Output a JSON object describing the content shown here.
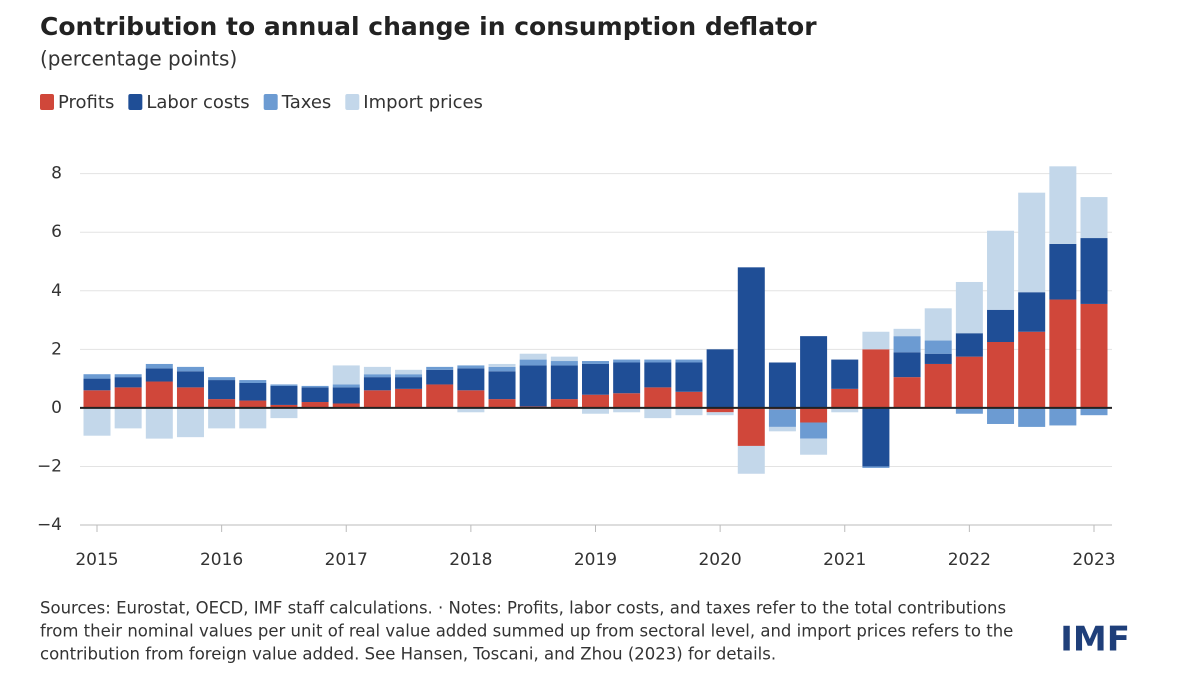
{
  "chart_data": {
    "type": "bar",
    "stacked": true,
    "title": "Contribution to annual change in consumption deflator",
    "subtitle": "(percentage points)",
    "categories": [
      "2015",
      null,
      null,
      null,
      "2016",
      null,
      null,
      null,
      "2017",
      null,
      null,
      null,
      "2018",
      null,
      null,
      null,
      "2019",
      null,
      null,
      null,
      "2020",
      null,
      null,
      null,
      "2021",
      null,
      null,
      null,
      "2022",
      null,
      null,
      null,
      "2023"
    ],
    "series": [
      {
        "name": "Profits",
        "color": "#d0473a",
        "values": [
          0.6,
          0.7,
          0.9,
          0.7,
          0.3,
          0.25,
          0.1,
          0.2,
          0.15,
          0.6,
          0.65,
          0.8,
          0.6,
          0.3,
          0.05,
          0.3,
          0.45,
          0.5,
          0.7,
          0.55,
          -0.15,
          -1.3,
          -0.05,
          -0.5,
          0.65,
          2.0,
          1.05,
          1.5,
          1.75,
          2.25,
          2.6,
          3.7,
          3.55
        ]
      },
      {
        "name": "Labor costs",
        "color": "#1f4e96",
        "values": [
          0.4,
          0.35,
          0.45,
          0.55,
          0.65,
          0.6,
          0.65,
          0.5,
          0.55,
          0.45,
          0.4,
          0.5,
          0.75,
          0.95,
          1.4,
          1.15,
          1.05,
          1.05,
          0.85,
          1.0,
          2.0,
          4.8,
          1.55,
          2.45,
          1.0,
          -2.0,
          0.85,
          0.35,
          0.8,
          1.1,
          1.35,
          1.9,
          2.25
        ]
      },
      {
        "name": "Taxes",
        "color": "#6c9bd2",
        "values": [
          0.15,
          0.1,
          0.15,
          0.15,
          0.1,
          0.1,
          0.05,
          0.05,
          0.1,
          0.1,
          0.1,
          0.1,
          0.1,
          0.15,
          0.2,
          0.15,
          0.1,
          0.1,
          0.1,
          0.1,
          0,
          0,
          -0.6,
          -0.55,
          0,
          -0.05,
          0.55,
          0.45,
          -0.2,
          -0.55,
          -0.65,
          -0.6,
          -0.25
        ]
      },
      {
        "name": "Import prices",
        "color": "#c3d7ea",
        "values": [
          -0.95,
          -0.7,
          -1.05,
          -1.0,
          -0.7,
          -0.7,
          -0.35,
          0,
          0.65,
          0.25,
          0.15,
          0,
          -0.15,
          0.1,
          0.2,
          0.15,
          -0.2,
          -0.15,
          -0.35,
          -0.25,
          -0.1,
          -0.95,
          -0.15,
          -0.55,
          -0.15,
          0.6,
          0.25,
          1.1,
          1.75,
          2.7,
          3.4,
          2.65,
          1.4
        ]
      }
    ],
    "ylim": [
      -4,
      8.5
    ],
    "yticks": [
      {
        "value": -4,
        "label": "−4"
      },
      {
        "value": -2,
        "label": "−2"
      },
      0,
      2,
      4,
      6,
      8
    ],
    "grid": true,
    "legend": "top-left",
    "source": [
      "Sources: Eurostat, OECD, IMF staff calculations. · Notes: Profits, labor costs, and taxes refer to the total contributions",
      "from their nominal values per unit of real value added summed up from sectoral level, and import prices refers to the",
      "contribution from foreign value added. See Hansen, Toscani, and Zhou (2023) for details."
    ],
    "logo": "IMF"
  }
}
